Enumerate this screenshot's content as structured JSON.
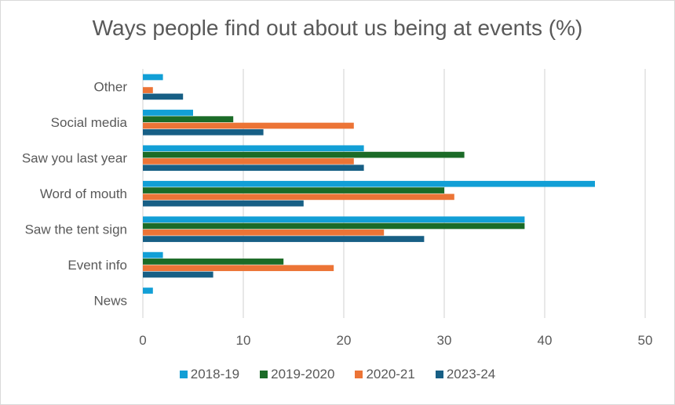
{
  "chart_data": {
    "type": "bar",
    "orientation": "horizontal",
    "title": "Ways people find out about us being at events (%)",
    "xlabel": "",
    "ylabel": "",
    "xlim": [
      0,
      50
    ],
    "xticks": [
      0,
      10,
      20,
      30,
      40,
      50
    ],
    "grid": true,
    "legend_position": "bottom",
    "categories": [
      "Other",
      "Social media",
      "Saw you last year",
      "Word of mouth",
      "Saw the tent sign",
      "Event info",
      "News"
    ],
    "series": [
      {
        "name": "2018-19",
        "color": "#129fd6",
        "values": [
          2,
          5,
          22,
          45,
          38,
          2,
          1
        ]
      },
      {
        "name": "2019-2020",
        "color": "#1b6b27",
        "values": [
          0,
          9,
          32,
          30,
          38,
          14,
          0
        ]
      },
      {
        "name": "2020-21",
        "color": "#ec7436",
        "values": [
          1,
          21,
          21,
          31,
          24,
          19,
          0
        ]
      },
      {
        "name": "2023-24",
        "color": "#175f85",
        "values": [
          4,
          12,
          22,
          16,
          28,
          7,
          0
        ]
      }
    ]
  }
}
